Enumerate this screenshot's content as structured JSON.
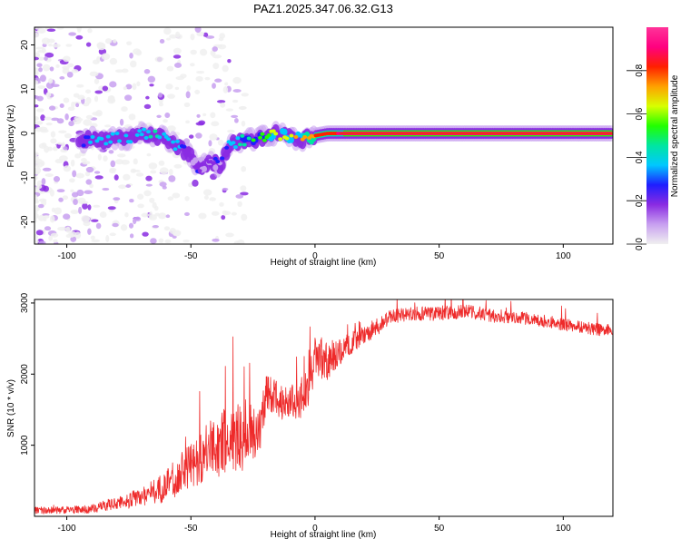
{
  "title": "PAZ1.2025.347.06.32.G13",
  "colors": {
    "snr_line": "#ee2a2a",
    "ridge": "#ee3311",
    "colorbar": [
      "#f0f0f0",
      "#c8a0f0",
      "#8a2be2",
      "#1e1eff",
      "#00c8ff",
      "#00e6a0",
      "#22ff00",
      "#d8ff00",
      "#ffa000",
      "#ff2000",
      "#ff0080",
      "#ff3399"
    ]
  },
  "chart_data": [
    {
      "type": "heatmap",
      "name": "spectrogram",
      "title": "PAZ1.2025.347.06.32.G13",
      "xlabel": "Height of straight line (km)",
      "ylabel": "Frequency (Hz)",
      "xlim": [
        -113,
        120
      ],
      "ylim": [
        -25,
        24
      ],
      "xticks": [
        -100,
        -50,
        0,
        50,
        100
      ],
      "xtick_labels": [
        "-100",
        "-50",
        "0",
        "50",
        "100"
      ],
      "yticks": [
        -20,
        -10,
        0,
        10,
        20
      ],
      "ytick_labels": [
        "-20",
        "-10",
        "0",
        "10",
        "20"
      ],
      "colorbar": {
        "label": "Normalized spectral amplitude",
        "range": [
          0,
          1
        ],
        "ticks": [
          0.0,
          0.2,
          0.4,
          0.6,
          0.8
        ],
        "tick_labels": [
          "0.0",
          "0.2",
          "0.4",
          "0.6",
          "0.8"
        ]
      },
      "ridge": {
        "x": [
          -95,
          -90,
          -85,
          -80,
          -75,
          -70,
          -65,
          -60,
          -55,
          -50,
          -47,
          -44,
          -41,
          -38,
          -35,
          -30,
          -25,
          -20,
          -15,
          -10,
          -5,
          0,
          5,
          10,
          20,
          40,
          60,
          80,
          100,
          120
        ],
        "y": [
          -2,
          -1,
          -1.5,
          -1,
          -1.5,
          0,
          -0.5,
          -1,
          -3,
          -5,
          -8,
          -7,
          -6.5,
          -7.5,
          -3,
          -1.5,
          -1.5,
          -0.5,
          0,
          -1,
          -1.5,
          -0.5,
          0,
          0,
          0,
          0,
          0,
          0,
          0,
          0
        ],
        "amplitude": [
          0.3,
          0.35,
          0.35,
          0.35,
          0.4,
          0.4,
          0.45,
          0.4,
          0.35,
          0.3,
          0.25,
          0.25,
          0.25,
          0.3,
          0.35,
          0.45,
          0.55,
          0.6,
          0.65,
          0.7,
          0.75,
          0.8,
          0.85,
          0.9,
          0.95,
          0.95,
          0.95,
          0.95,
          0.95,
          0.95
        ]
      }
    },
    {
      "type": "line",
      "name": "snr",
      "xlabel": "Height of straight line (km)",
      "ylabel": "SNR (10 * v/v)",
      "xlim": [
        -113,
        120
      ],
      "ylim": [
        0,
        3050
      ],
      "xticks": [
        -100,
        -50,
        0,
        50,
        100
      ],
      "xtick_labels": [
        "-100",
        "-50",
        "0",
        "50",
        "100"
      ],
      "yticks": [
        1000,
        2000,
        3000
      ],
      "ytick_labels": [
        "1000",
        "2000",
        "3000"
      ],
      "series": [
        {
          "name": "SNR",
          "x": [
            -113,
            -100,
            -90,
            -80,
            -75,
            -70,
            -65,
            -60,
            -55,
            -50,
            -45,
            -40,
            -35,
            -30,
            -25,
            -22,
            -20,
            -15,
            -10,
            -5,
            -2,
            0,
            5,
            10,
            15,
            20,
            25,
            30,
            40,
            50,
            60,
            70,
            80,
            90,
            100,
            110,
            120
          ],
          "y": [
            80,
            90,
            100,
            190,
            220,
            280,
            350,
            420,
            580,
            720,
            850,
            1000,
            1050,
            1100,
            1180,
            1250,
            1700,
            1650,
            1600,
            1650,
            1900,
            2300,
            2150,
            2350,
            2450,
            2550,
            2650,
            2800,
            2850,
            2850,
            2880,
            2830,
            2800,
            2760,
            2700,
            2650,
            2600
          ],
          "noise": [
            50,
            50,
            60,
            90,
            110,
            140,
            180,
            220,
            280,
            330,
            380,
            460,
            480,
            480,
            420,
            380,
            300,
            280,
            260,
            260,
            300,
            330,
            280,
            240,
            160,
            120,
            110,
            100,
            100,
            100,
            110,
            100,
            90,
            90,
            90,
            90,
            90
          ]
        }
      ]
    }
  ]
}
